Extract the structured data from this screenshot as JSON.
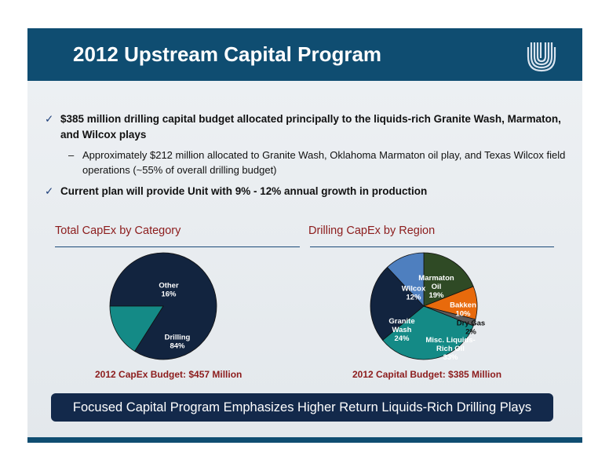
{
  "header": {
    "title": "2012 Upstream Capital Program"
  },
  "bullets": {
    "check_glyph": "✓",
    "dash_glyph": "–",
    "b1": "$385 million drilling capital budget allocated principally to the liquids-rich Granite Wash, Marmaton, and Wilcox plays",
    "b1_sub": "Approximately $212 million allocated to Granite Wash, Oklahoma Marmaton oil play, and Texas Wilcox field operations (~55% of overall drilling budget)",
    "b2": "Current plan will provide Unit with 9% - 12% annual growth in production"
  },
  "chart_data": [
    {
      "type": "pie",
      "title": "Total CapEx by Category",
      "footer": "2012 CapEx Budget: $457 Million",
      "slices": [
        {
          "label": "Drilling",
          "pct_label": "84%",
          "value": 84,
          "color": "#12243f"
        },
        {
          "label": "Other",
          "pct_label": "16%",
          "value": 16,
          "color": "#148a86"
        }
      ]
    },
    {
      "type": "pie",
      "title": "Drilling CapEx by Region",
      "footer": "2012 Capital Budget: $385 Million",
      "slices": [
        {
          "label": "Marmaton Oil",
          "pct_label": "19%",
          "value": 19,
          "color": "#2f4a25"
        },
        {
          "label": "Bakken",
          "pct_label": "10%",
          "value": 10,
          "color": "#e86a0c"
        },
        {
          "label": "Dry Gas",
          "pct_label": "2%",
          "value": 2,
          "color": "#5a5a5a"
        },
        {
          "label": "Misc. Liquids-Rich Oil",
          "pct_label": "33%",
          "value": 33,
          "color": "#148a86"
        },
        {
          "label": "Granite Wash",
          "pct_label": "24%",
          "value": 24,
          "color": "#12243f"
        },
        {
          "label": "Wilcox",
          "pct_label": "12%",
          "value": 12,
          "color": "#4e7fbf"
        }
      ]
    }
  ],
  "banner": {
    "text": "Focused Capital Program Emphasizes Higher Return Liquids-Rich Drilling Plays"
  },
  "colors": {
    "header": "#0f4d71",
    "accent_text": "#8c1c1c",
    "banner": "#13294b"
  }
}
